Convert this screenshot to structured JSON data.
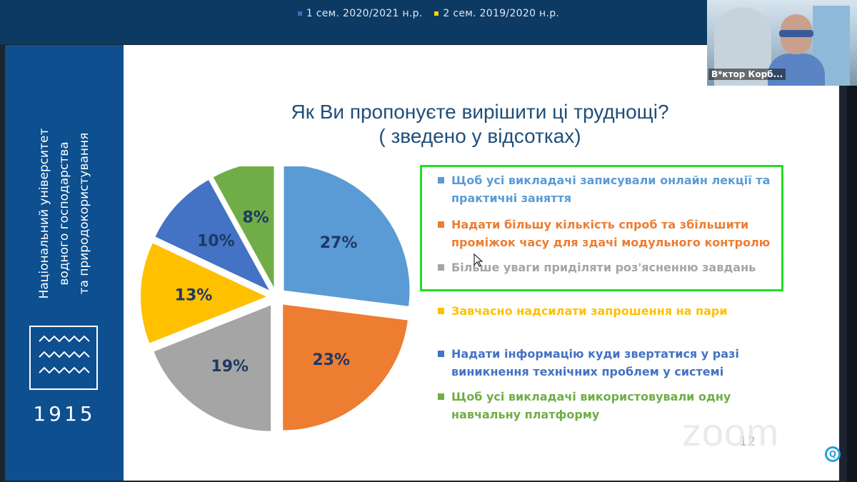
{
  "prev_chart_legend": [
    {
      "label": "1 сем. 2020/2021 н.р.",
      "color": "#3b6fb0"
    },
    {
      "label": "2 сем. 2019/2020 н.р.",
      "color": "#ffd400"
    }
  ],
  "sidebar": {
    "university_lines": [
      "Національний університет",
      "водного господарства",
      "та природокористування"
    ],
    "year": "1915",
    "logo_icon": "waves-logo-icon"
  },
  "title_lines": [
    "Як Ви пропонуєте вирішити ці труднощі?",
    "( зведено у відсотках)"
  ],
  "chart_data": {
    "type": "pie",
    "title": "Як Ви пропонуєте вирішити ці труднощі? ( зведено у відсотках)",
    "slices": [
      {
        "label": "Щоб усі викладачі записували онлайн лекції та практичні заняття",
        "value": 27,
        "display": "27%",
        "color": "#5b9bd5",
        "label_color": "#1f3864"
      },
      {
        "label": "Надати більшу кількість спроб та збільшити проміжок часу для здачі модульного контролю",
        "value": 23,
        "display": "23%",
        "color": "#ed7d31",
        "label_color": "#1f3864"
      },
      {
        "label": "Більше уваги приділяти роз'ясненню завдань",
        "value": 19,
        "display": "19%",
        "color": "#a5a5a5",
        "label_color": "#1f3864"
      },
      {
        "label": "Завчасно надсилати запрошення на пари",
        "value": 13,
        "display": "13%",
        "color": "#ffc000",
        "label_color": "#1f3864"
      },
      {
        "label": "Надати інформацію куди звертатися у разі виникнення технічних проблем у системі",
        "value": 10,
        "display": "10%",
        "color": "#4472c4",
        "label_color": "#1f3864"
      },
      {
        "label": "Щоб усі викладачі використовували одну навчальну платформу",
        "value": 8,
        "display": "8%",
        "color": "#70ad47",
        "label_color": "#1f3864"
      }
    ],
    "legend_position": "right"
  },
  "legend_lines": [
    [
      "Щоб усі викладачі записували онлайн лекції та",
      "практичні заняття"
    ],
    [
      "Надати більшу кількість спроб та збільшити",
      "проміжок часу для здачі модульного контролю"
    ],
    [
      "Більше уваги приділяти роз'ясненню завдань"
    ],
    [
      "Завчасно надсилати запрошення на пари"
    ],
    [
      "Надати інформацію куди звертатися у разі",
      "виникнення технічних проблем у системі"
    ],
    [
      "Щоб усі викладачі використовували одну",
      "навчальну платформу"
    ]
  ],
  "page_number": "12",
  "zoom_watermark": "zoom",
  "webcam": {
    "participant_name": "В*ктор Корб..."
  },
  "icons": {
    "cursor": "mouse-cursor-icon",
    "assistant": "q-assistant-icon"
  }
}
